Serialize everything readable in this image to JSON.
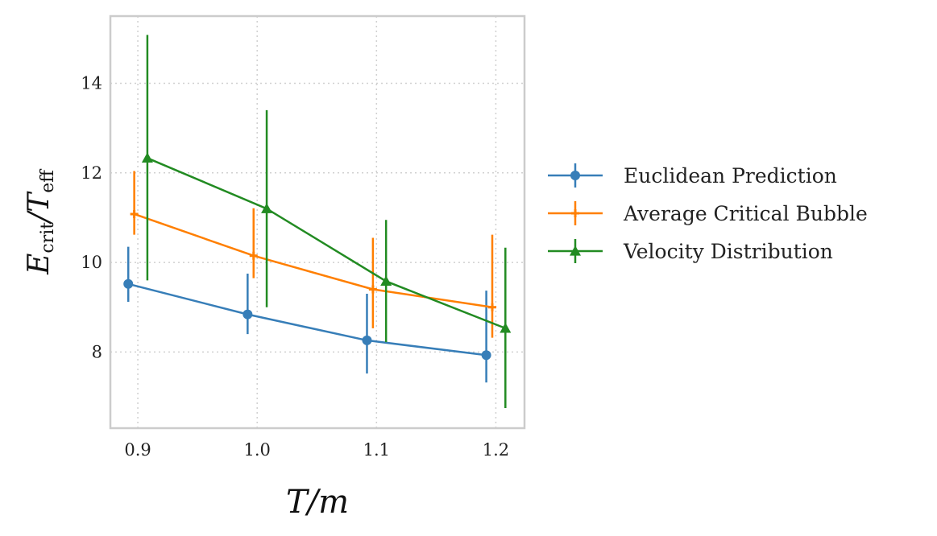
{
  "chart_data": {
    "type": "line",
    "xlabel_main": "T",
    "xlabel_rest": "/m",
    "ylabel_e": "E",
    "ylabel_e_sub": "crit",
    "ylabel_slash": "/",
    "ylabel_t": "T",
    "ylabel_t_sub": "eff",
    "xlim": [
      0.877,
      1.224
    ],
    "ylim": [
      6.3,
      15.5
    ],
    "xticks": [
      0.9,
      1.0,
      1.1,
      1.2
    ],
    "xtick_labels": [
      "0.9",
      "1.0",
      "1.1",
      "1.2"
    ],
    "yticks": [
      8,
      10,
      12,
      14
    ],
    "ytick_labels": [
      "8",
      "10",
      "12",
      "14"
    ],
    "grid": true,
    "legend_position": "right",
    "series": [
      {
        "name": "Euclidean Prediction",
        "color": "#377eb8",
        "marker": "circle",
        "x": [
          0.892,
          0.992,
          1.092,
          1.192
        ],
        "y": [
          9.52,
          8.84,
          8.26,
          7.93
        ],
        "err_low": [
          9.12,
          8.4,
          7.52,
          7.32
        ],
        "err_high": [
          10.35,
          9.75,
          9.3,
          9.37
        ]
      },
      {
        "name": "Average Critical Bubble",
        "color": "#ff7f00",
        "marker": "plus",
        "x": [
          0.897,
          0.997,
          1.097,
          1.197
        ],
        "y": [
          11.08,
          10.15,
          9.4,
          9.0
        ],
        "err_low": [
          10.62,
          9.65,
          8.53,
          8.32
        ],
        "err_high": [
          12.04,
          11.21,
          10.55,
          10.62
        ]
      },
      {
        "name": "Velocity Distribution",
        "color": "#228b22",
        "marker": "triangle",
        "x": [
          0.908,
          1.008,
          1.108,
          1.208
        ],
        "y": [
          12.33,
          11.2,
          9.58,
          8.53
        ],
        "err_low": [
          9.6,
          9.0,
          8.22,
          6.75
        ],
        "err_high": [
          15.08,
          13.4,
          10.95,
          10.33
        ]
      }
    ]
  }
}
